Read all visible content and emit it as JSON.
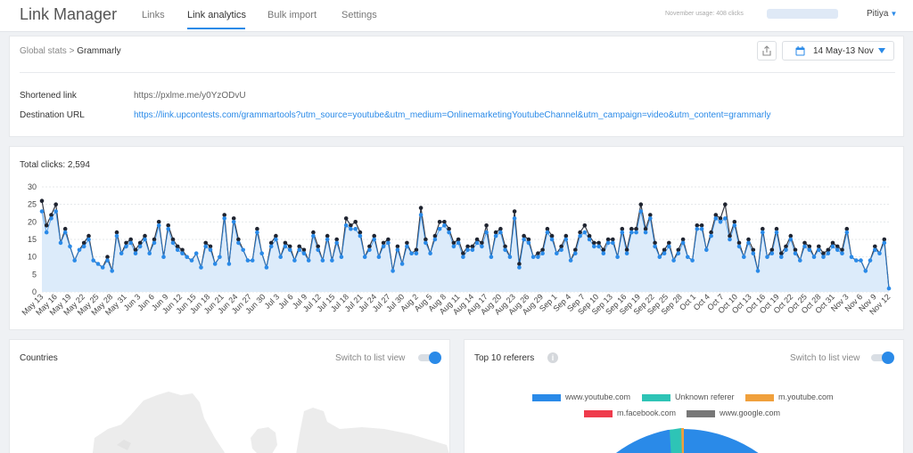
{
  "app": {
    "title": "Link Manager"
  },
  "nav": [
    {
      "label": "Links"
    },
    {
      "label": "Link analytics"
    },
    {
      "label": "Bulk import"
    },
    {
      "label": "Settings"
    }
  ],
  "usage_text": "November usage: 408 clicks",
  "user": {
    "name": "Pitiya"
  },
  "breadcrumb": {
    "parent": "Global stats",
    "separator": ">",
    "current": "Grammarly"
  },
  "date_range": "14 May-13 Nov",
  "link_info": {
    "shortened_label": "Shortened link",
    "shortened_value": "https://pxlme.me/y0YzODvU",
    "destination_label": "Destination URL",
    "destination_value": "https://link.upcontests.com/grammartools?utm_source=youtube&utm_medium=OnlinemarketingYoutubeChannel&utm_campaign=video&utm_content=grammarly"
  },
  "total_clicks": "Total clicks: 2,594",
  "countries": {
    "title": "Countries",
    "switch_label": "Switch to list view"
  },
  "referers": {
    "title": "Top 10 referers",
    "switch_label": "Switch to list view",
    "legend": [
      {
        "label": "www.youtube.com",
        "color": "#2a8ae8"
      },
      {
        "label": "Unknown referer",
        "color": "#2ec4b6"
      },
      {
        "label": "m.youtube.com",
        "color": "#f0a03c"
      },
      {
        "label": "m.facebook.com",
        "color": "#ef3b4c"
      },
      {
        "label": "www.google.com",
        "color": "#777777"
      }
    ]
  },
  "chart_data": {
    "type": "line",
    "ylim": [
      0,
      30
    ],
    "yticks": [
      "0",
      "5",
      "10",
      "15",
      "20",
      "25",
      "30"
    ],
    "xtick_labels": [
      "May 13",
      "May 16",
      "May 19",
      "May 22",
      "May 25",
      "May 28",
      "May 31",
      "Jun 3",
      "Jun 6",
      "Jun 9",
      "Jun 12",
      "Jun 15",
      "Jun 18",
      "Jun 21",
      "Jun 24",
      "Jun 27",
      "Jun 30",
      "Jul 3",
      "Jul 6",
      "Jul 9",
      "Jul 12",
      "Jul 15",
      "Jul 18",
      "Jul 21",
      "Jul 24",
      "Jul 27",
      "Jul 30",
      "Aug 2",
      "Aug 5",
      "Aug 8",
      "Aug 11",
      "Aug 14",
      "Aug 17",
      "Aug 20",
      "Aug 23",
      "Aug 26",
      "Aug 29",
      "Sep 1",
      "Sep 4",
      "Sep 7",
      "Sep 10",
      "Sep 13",
      "Sep 16",
      "Sep 19",
      "Sep 22",
      "Sep 25",
      "Sep 28",
      "Oct 1",
      "Oct 4",
      "Oct 7",
      "Oct 10",
      "Oct 13",
      "Oct 16",
      "Oct 19",
      "Oct 22",
      "Oct 25",
      "Oct 28",
      "Oct 31",
      "Nov 3",
      "Nov 6",
      "Nov 9",
      "Nov 12"
    ],
    "series": [
      {
        "color": "#1f2430",
        "values": [
          26,
          19,
          22,
          25,
          14,
          18,
          13,
          9,
          12,
          14,
          16,
          9,
          8,
          7,
          10,
          6,
          17,
          11,
          14,
          15,
          12,
          14,
          16,
          11,
          15,
          20,
          10,
          19,
          15,
          13,
          12,
          10,
          9,
          11,
          7,
          14,
          13,
          8,
          10,
          22,
          8,
          21,
          15,
          12,
          9,
          9,
          18,
          11,
          7,
          14,
          16,
          10,
          14,
          13,
          9,
          13,
          12,
          9,
          17,
          13,
          9,
          16,
          9,
          15,
          10,
          21,
          19,
          20,
          17,
          10,
          13,
          16,
          10,
          14,
          15,
          6,
          13,
          8,
          14,
          11,
          12,
          24,
          15,
          11,
          16,
          20,
          20,
          18,
          14,
          15,
          11,
          13,
          13,
          15,
          14,
          19,
          10,
          17,
          18,
          13,
          10,
          23,
          8,
          16,
          15,
          10,
          11,
          12,
          18,
          16,
          11,
          13,
          16,
          9,
          12,
          17,
          19,
          16,
          14,
          14,
          12,
          15,
          15,
          10,
          18,
          12,
          18,
          18,
          25,
          18,
          22,
          14,
          10,
          12,
          14,
          9,
          12,
          15,
          10,
          9,
          19,
          19,
          12,
          17,
          22,
          21,
          25,
          16,
          20,
          14,
          10,
          15,
          12,
          6,
          18,
          10,
          12,
          18,
          11,
          13,
          16,
          12,
          9,
          14,
          13,
          10,
          13,
          11,
          12,
          14,
          13,
          12,
          18,
          10,
          9,
          9,
          6,
          9,
          13,
          11,
          15,
          1
        ]
      },
      {
        "color": "#2a8ae8",
        "values": [
          23,
          17,
          21,
          23,
          14,
          17,
          13,
          9,
          12,
          13,
          15,
          9,
          8,
          7,
          9,
          6,
          16,
          11,
          13,
          14,
          11,
          13,
          15,
          11,
          14,
          19,
          10,
          18,
          14,
          12,
          11,
          10,
          9,
          11,
          7,
          13,
          12,
          8,
          10,
          21,
          8,
          20,
          14,
          12,
          9,
          9,
          17,
          11,
          7,
          13,
          15,
          10,
          13,
          12,
          9,
          12,
          11,
          9,
          16,
          12,
          9,
          15,
          9,
          14,
          10,
          19,
          18,
          18,
          16,
          10,
          12,
          15,
          10,
          13,
          14,
          6,
          12,
          8,
          13,
          11,
          11,
          22,
          14,
          11,
          15,
          18,
          19,
          17,
          13,
          14,
          10,
          12,
          12,
          14,
          13,
          17,
          10,
          16,
          17,
          12,
          10,
          21,
          7,
          15,
          14,
          10,
          10,
          11,
          17,
          15,
          11,
          12,
          15,
          9,
          11,
          16,
          17,
          15,
          13,
          13,
          11,
          14,
          14,
          10,
          17,
          11,
          17,
          17,
          23,
          17,
          21,
          13,
          10,
          11,
          13,
          9,
          11,
          14,
          10,
          9,
          18,
          18,
          12,
          16,
          21,
          20,
          21,
          15,
          19,
          13,
          10,
          14,
          11,
          6,
          17,
          10,
          11,
          17,
          10,
          12,
          15,
          11,
          9,
          13,
          12,
          10,
          12,
          10,
          11,
          13,
          12,
          11,
          17,
          10,
          9,
          9,
          6,
          9,
          12,
          11,
          14,
          1
        ]
      }
    ]
  }
}
